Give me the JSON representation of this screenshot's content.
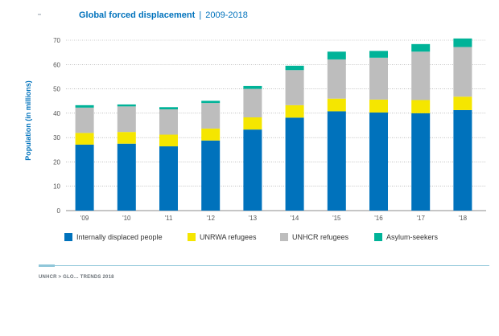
{
  "header": {
    "title": "Global forced displacement",
    "separator": "|",
    "years": "2009-2018"
  },
  "footer": {
    "text": "UNHCR > GLO… TRENDS 2018"
  },
  "colors": {
    "idp": "#0072bc",
    "unrwa": "#f5e600",
    "unhcr": "#bdbdbd",
    "asylum": "#00b398",
    "axis_text": "#555555",
    "grid": "#999999"
  },
  "chart_data": {
    "type": "bar",
    "stacked": true,
    "title": "Global forced displacement | 2009-2018",
    "ylabel": "Population (in millions)",
    "xlabel": "",
    "ylim": [
      0,
      70
    ],
    "yticks": [
      0,
      10,
      20,
      30,
      40,
      50,
      60,
      70
    ],
    "grid": "horizontal dotted",
    "legend_position": "bottom",
    "categories": [
      "'09",
      "'10",
      "'11",
      "'12",
      "'13",
      "'14",
      "'15",
      "'16",
      "'17",
      "'18"
    ],
    "series": [
      {
        "name": "Internally displaced people",
        "color": "#0072bc",
        "values": [
          27.1,
          27.5,
          26.4,
          28.8,
          33.3,
          38.2,
          40.8,
          40.3,
          40.0,
          41.3
        ]
      },
      {
        "name": "UNRWA refugees",
        "color": "#f5e600",
        "values": [
          4.8,
          4.8,
          4.8,
          4.9,
          5.0,
          5.1,
          5.2,
          5.3,
          5.4,
          5.5
        ]
      },
      {
        "name": "UNHCR refugees",
        "color": "#bdbdbd",
        "values": [
          10.4,
          10.5,
          10.4,
          10.5,
          11.7,
          14.4,
          16.1,
          17.2,
          19.9,
          20.4
        ]
      },
      {
        "name": "Asylum-seekers",
        "color": "#00b398",
        "values": [
          1.0,
          0.8,
          0.9,
          0.9,
          1.2,
          1.8,
          3.2,
          2.8,
          3.1,
          3.5
        ]
      }
    ]
  }
}
